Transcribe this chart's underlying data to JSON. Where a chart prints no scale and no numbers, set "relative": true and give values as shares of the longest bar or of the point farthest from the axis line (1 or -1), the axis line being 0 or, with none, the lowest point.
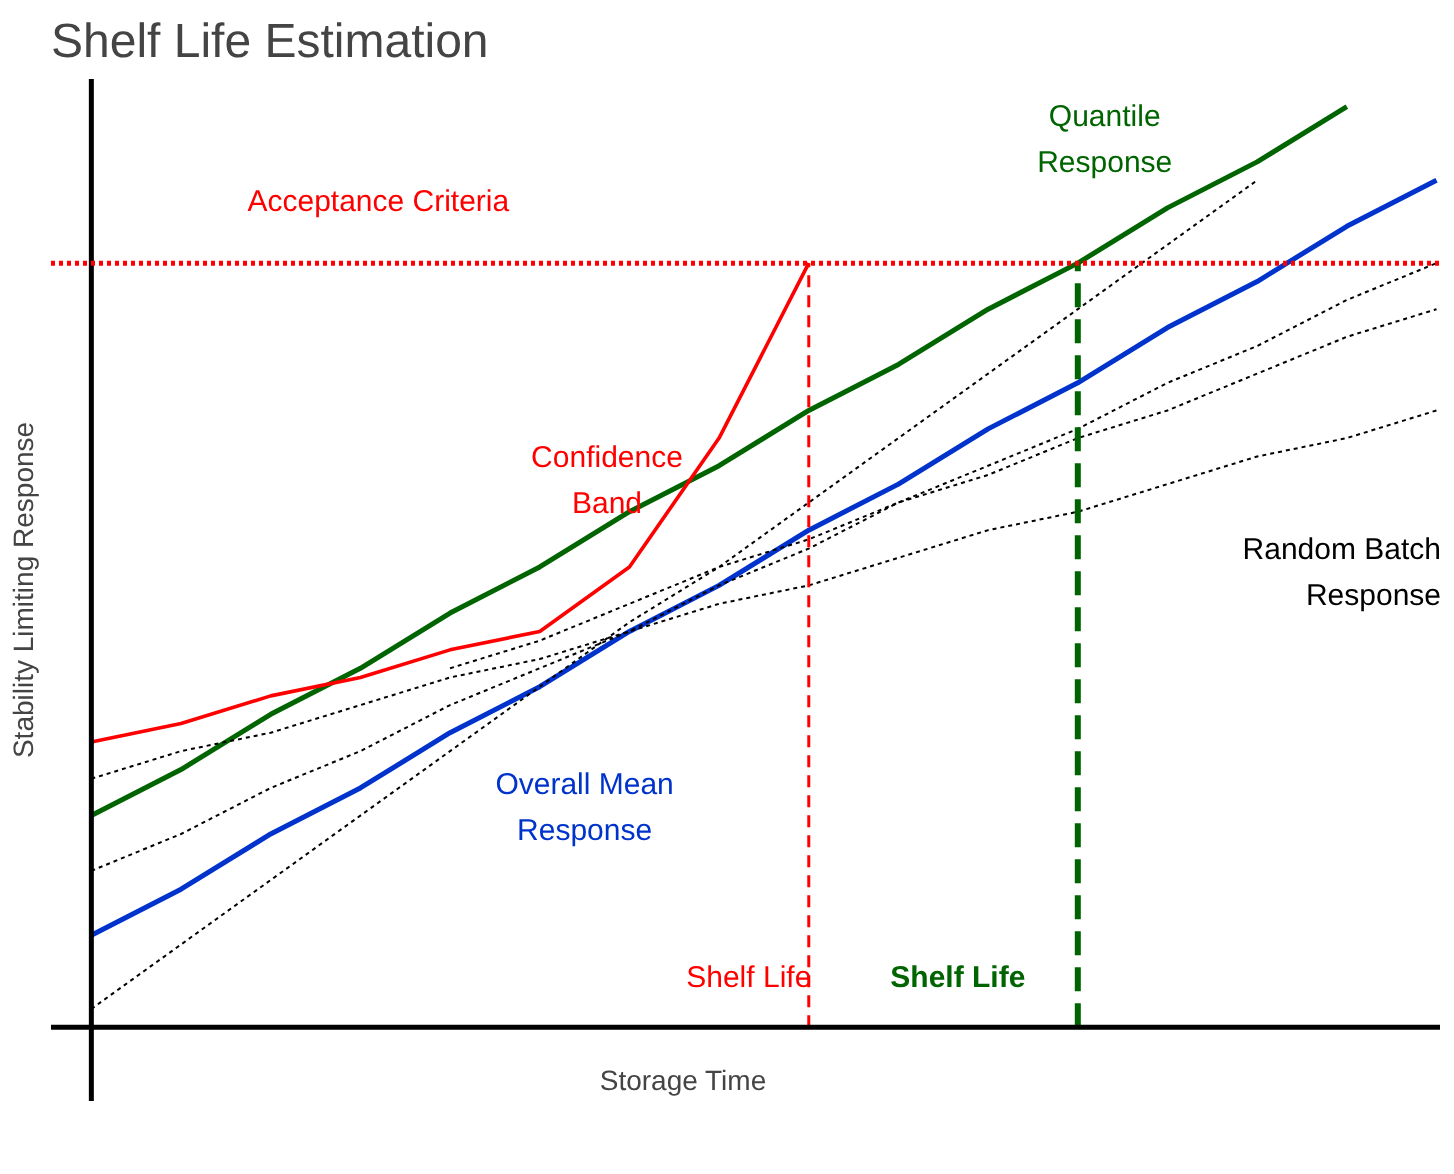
{
  "chart_data": {
    "type": "line",
    "title": "Shelf Life Estimation",
    "xlabel": "Storage Time",
    "ylabel": "Stability Limiting Response",
    "relative": true,
    "tick_labels": false,
    "grid": false,
    "marker": "none",
    "categories": [
      null,
      null,
      null,
      null,
      null,
      null,
      null,
      null,
      null,
      null,
      null,
      null,
      null,
      null,
      null,
      null
    ],
    "series": [
      {
        "name": "Quantile Response",
        "color": "#006400",
        "values": [
          0.23,
          0.28,
          0.34,
          0.39,
          0.45,
          0.5,
          0.56,
          0.61,
          0.67,
          0.72,
          0.78,
          0.83,
          0.89,
          0.94,
          1.0,
          null
        ]
      },
      {
        "name": "Overall Mean Response",
        "color": "#0033cc",
        "values": [
          0.1,
          0.15,
          0.21,
          0.26,
          0.32,
          0.37,
          0.43,
          0.48,
          0.54,
          0.59,
          0.65,
          0.7,
          0.76,
          0.81,
          0.87,
          0.92
        ]
      },
      {
        "name": "Confidence Band",
        "color": "#ff0000",
        "values": [
          0.31,
          0.33,
          0.36,
          0.38,
          0.41,
          0.43,
          0.5,
          0.64,
          0.83,
          null,
          null,
          null,
          null,
          null,
          null,
          null
        ]
      },
      {
        "name": "Random Batch Response",
        "color": "#000000",
        "line_style": "dashed",
        "values": [
          0.02,
          0.09,
          0.16,
          0.23,
          0.3,
          0.37,
          0.44,
          0.5,
          0.57,
          0.64,
          0.71,
          0.78,
          0.85,
          0.92,
          null,
          null
        ]
      },
      {
        "color": "#000000",
        "line_style": "dashed",
        "values": [
          0.17,
          0.21,
          0.26,
          0.3,
          0.35,
          0.39,
          0.43,
          0.48,
          0.52,
          0.57,
          0.61,
          0.65,
          0.7,
          0.74,
          0.79,
          0.83
        ]
      },
      {
        "color": "#000000",
        "line_style": "dashed",
        "values": [
          0.27,
          0.3,
          0.32,
          0.35,
          0.38,
          0.4,
          0.43,
          0.46,
          0.48,
          0.51,
          0.54,
          0.56,
          0.59,
          0.62,
          0.64,
          0.67
        ]
      },
      {
        "color": "#000000",
        "line_style": "dashed",
        "values": [
          null,
          null,
          null,
          null,
          0.39,
          0.42,
          0.46,
          0.5,
          0.53,
          0.57,
          0.6,
          0.64,
          0.67,
          0.71,
          0.75,
          0.78
        ]
      }
    ],
    "ref_lines": [
      {
        "axis": "y",
        "value": 0.83,
        "label": "Acceptance Criteria",
        "color": "#ff0000",
        "line_style": "dotted"
      },
      {
        "axis": "x",
        "label": "Shelf Life",
        "color": "#ff0000",
        "line_style": "dashed"
      },
      {
        "axis": "x",
        "label": "Shelf Life",
        "color": "#006400",
        "line_style": "dashed"
      }
    ]
  }
}
